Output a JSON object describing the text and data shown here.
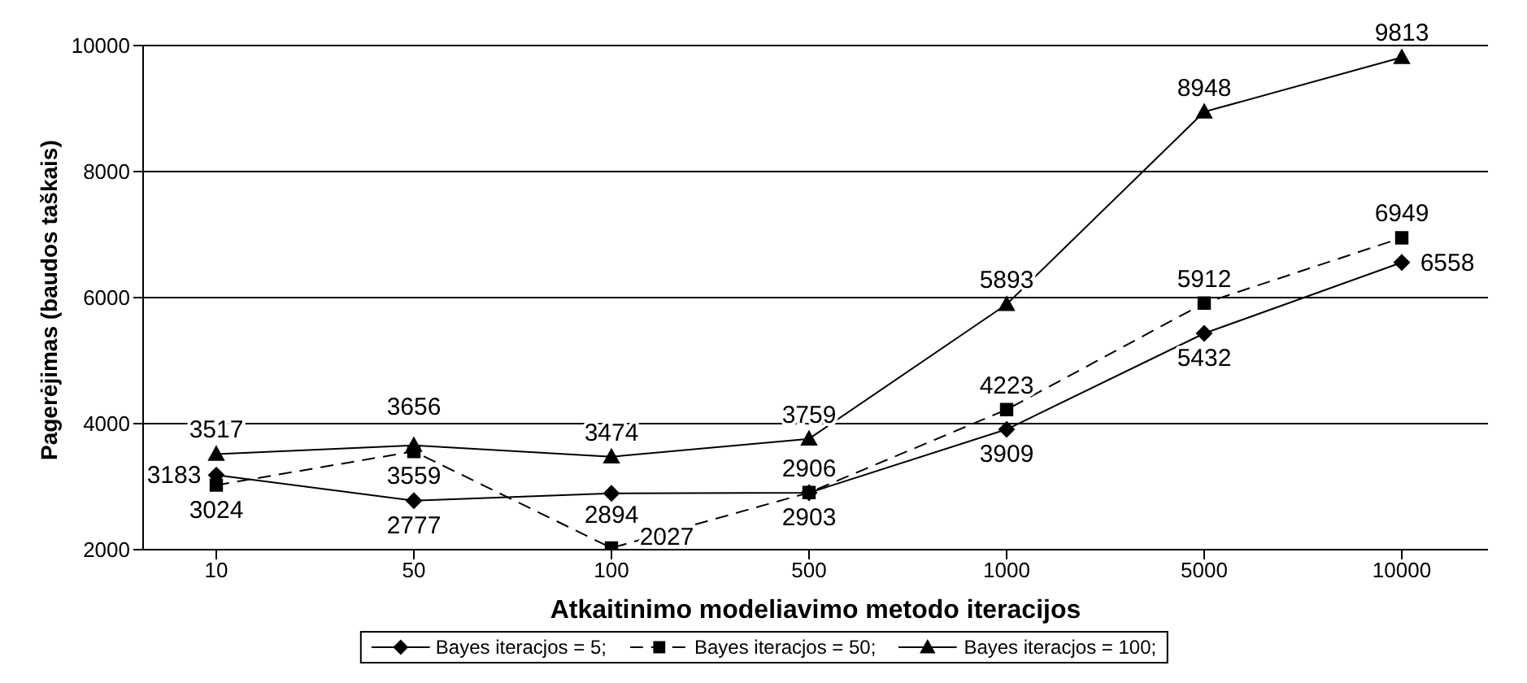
{
  "chart_data": {
    "type": "line",
    "xlabel": "Atkaitinimo modeliavimo metodo iteracijos",
    "ylabel": "Pagerėjimas (baudos taškais)",
    "categories": [
      "10",
      "50",
      "100",
      "500",
      "1000",
      "5000",
      "10000"
    ],
    "series": [
      {
        "name": "Bayes iteracjos = 5;",
        "color": "#000000",
        "marker": "diamond",
        "line_style": "solid",
        "values": [
          3183,
          2777,
          2894,
          2903,
          3909,
          5432,
          6558
        ]
      },
      {
        "name": "Bayes iteracjos = 50;",
        "color": "#000000",
        "marker": "square",
        "line_style": "dashed",
        "values": [
          3024,
          3559,
          2027,
          2906,
          4223,
          5912,
          6949
        ]
      },
      {
        "name": "Bayes iteracjos = 100;",
        "color": "#000000",
        "marker": "triangle",
        "line_style": "solid",
        "values": [
          3517,
          3656,
          3474,
          3759,
          5893,
          8948,
          9813
        ]
      }
    ],
    "ylim": [
      2000,
      10000
    ],
    "yticks": [
      2000,
      4000,
      6000,
      8000,
      10000
    ],
    "grid": "y",
    "legend": "bottom",
    "data_labels": true
  }
}
